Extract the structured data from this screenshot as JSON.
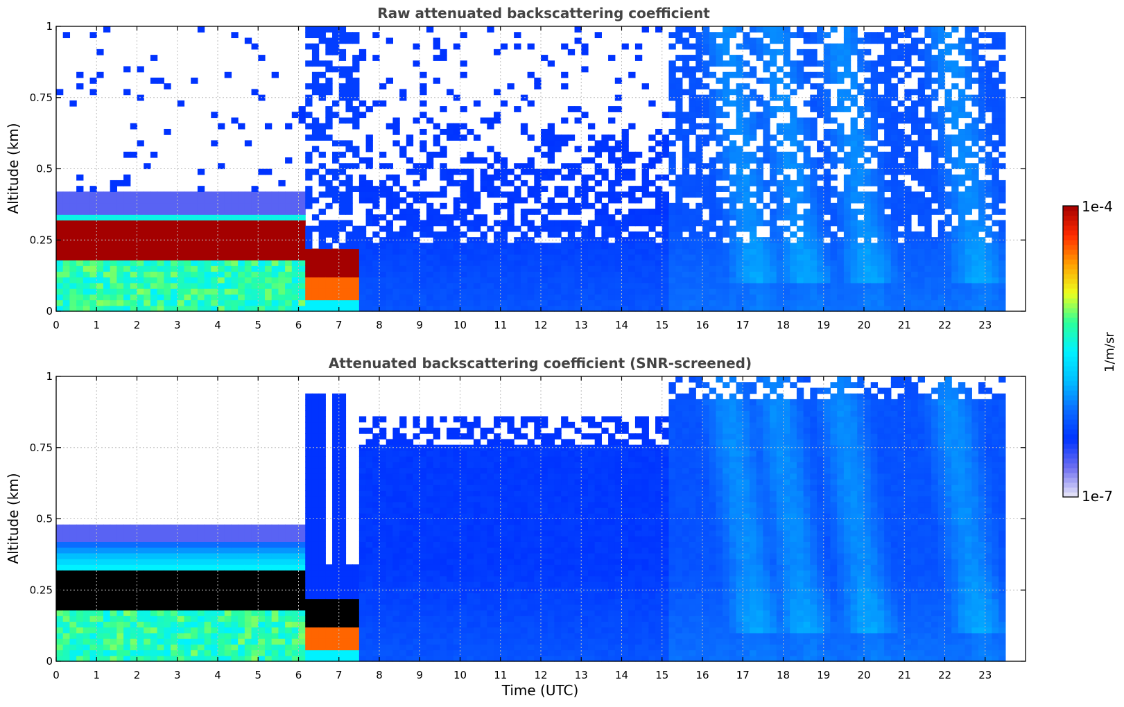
{
  "colors": {
    "title": "#444444",
    "colormap": [
      "#ebe9f8",
      "#6f6ff0",
      "#0033ff",
      "#0a6cff",
      "#00bfff",
      "#00f2ff",
      "#2cff9a",
      "#ecff1e",
      "#ffa000",
      "#ff2a00",
      "#a40000"
    ],
    "saturated_screened": "#000000"
  },
  "colorbar": {
    "max_label": "1e-4",
    "min_label": "1e-7",
    "unit_label": "1/m/sr",
    "scale": "log"
  },
  "xlabel": "Time (UTC)",
  "chart_data": [
    {
      "type": "heatmap",
      "title": "Raw attenuated backscattering coefficient",
      "xlabel": "",
      "ylabel": "Altitude (km)",
      "xlim": [
        0,
        24
      ],
      "ylim": [
        0,
        1
      ],
      "x_ticks": [
        "0",
        "1",
        "2",
        "3",
        "4",
        "5",
        "6",
        "7",
        "8",
        "9",
        "10",
        "11",
        "12",
        "13",
        "14",
        "15",
        "16",
        "17",
        "18",
        "19",
        "20",
        "21",
        "22",
        "23"
      ],
      "y_ticks": [
        "0",
        "0.25",
        "0.5",
        "0.75",
        "1"
      ],
      "grid": true,
      "data_end_hour": 23.5,
      "colorbar_range": [
        1e-07,
        0.0001
      ],
      "features": {
        "fog_layer_top_km": 0.35,
        "fog_core_km": [
          0.18,
          0.32
        ],
        "fog_end_hour": 7.4,
        "noise_onset_hour": 6.2,
        "plume_hours": [
          17.1,
          18.3,
          19.9,
          22.6
        ]
      }
    },
    {
      "type": "heatmap",
      "title": "Attenuated backscattering coefficient (SNR-screened)",
      "xlabel": "Time (UTC)",
      "ylabel": "Altitude (km)",
      "xlim": [
        0,
        24
      ],
      "ylim": [
        0,
        1
      ],
      "x_ticks": [
        "0",
        "1",
        "2",
        "3",
        "4",
        "5",
        "6",
        "7",
        "8",
        "9",
        "10",
        "11",
        "12",
        "13",
        "14",
        "15",
        "16",
        "17",
        "18",
        "19",
        "20",
        "21",
        "22",
        "23"
      ],
      "y_ticks": [
        "0",
        "0.25",
        "0.5",
        "0.75",
        "1"
      ],
      "grid": true,
      "data_end_hour": 23.5,
      "colorbar_range": [
        1e-07,
        0.0001
      ],
      "features": {
        "fog_layer_top_km": 0.42,
        "saturated_core_km": [
          0.16,
          0.31
        ],
        "screened_top_km": 0.76,
        "plume_hours": [
          17.1,
          18.3,
          19.9,
          22.6
        ]
      }
    }
  ]
}
